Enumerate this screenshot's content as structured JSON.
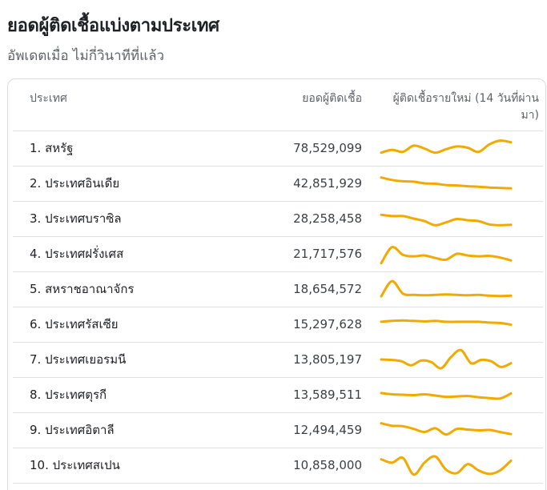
{
  "title": "ยอดผู้ติดเชื้อแบ่งตามประเทศ",
  "subtitle": "อัพเดตเมื่อ ไม่กี่วินาทีที่แล้ว",
  "table": {
    "headers": {
      "country": "ประเทศ",
      "cases": "ยอดผู้ติดเชื้อ",
      "trend": "ผู้ติดเชื้อรายใหม่ (14 วันที่ผ่านมา)"
    },
    "rows": [
      {
        "country": "1. สหรัฐ",
        "cases": "78,529,099",
        "trend": [
          0.28,
          0.42,
          0.32,
          0.62,
          0.48,
          0.28,
          0.45,
          0.58,
          0.52,
          0.32,
          0.68,
          0.86,
          0.78
        ]
      },
      {
        "country": "2. ประเทศอินเดีย",
        "cases": "42,851,929",
        "trend": [
          0.78,
          0.66,
          0.6,
          0.58,
          0.5,
          0.48,
          0.42,
          0.4,
          0.36,
          0.34,
          0.3,
          0.28,
          0.26
        ]
      },
      {
        "country": "3. ประเทศบราซิล",
        "cases": "28,258,458",
        "trend": [
          0.68,
          0.62,
          0.62,
          0.5,
          0.38,
          0.18,
          0.32,
          0.48,
          0.42,
          0.38,
          0.22,
          0.18,
          0.2
        ]
      },
      {
        "country": "4. ประเทศฝรั่งเศส",
        "cases": "21,717,576",
        "trend": [
          0.05,
          0.82,
          0.45,
          0.38,
          0.42,
          0.3,
          0.22,
          0.5,
          0.42,
          0.38,
          0.4,
          0.32,
          0.18
        ]
      },
      {
        "country": "5. สหราชอาณาจักร",
        "cases": "18,654,572",
        "trend": [
          0.15,
          0.88,
          0.28,
          0.22,
          0.2,
          0.22,
          0.24,
          0.22,
          0.2,
          0.22,
          0.18,
          0.16,
          0.18
        ]
      },
      {
        "country": "6. ประเทศรัสเซีย",
        "cases": "15,297,628",
        "trend": [
          0.62,
          0.66,
          0.68,
          0.66,
          0.64,
          0.66,
          0.62,
          0.62,
          0.62,
          0.62,
          0.58,
          0.56,
          0.48
        ]
      },
      {
        "country": "7. ประเทศเยอรมนี",
        "cases": "13,805,197",
        "trend": [
          0.5,
          0.48,
          0.42,
          0.22,
          0.45,
          0.38,
          0.08,
          0.62,
          0.95,
          0.32,
          0.48,
          0.42,
          0.14,
          0.32
        ]
      },
      {
        "country": "8. ประเทศตุรกี",
        "cases": "13,589,511",
        "trend": [
          0.58,
          0.52,
          0.5,
          0.48,
          0.52,
          0.46,
          0.4,
          0.42,
          0.44,
          0.38,
          0.34,
          0.32,
          0.56
        ]
      },
      {
        "country": "9. ประเทศอิตาลี",
        "cases": "12,494,459",
        "trend": [
          0.82,
          0.7,
          0.68,
          0.55,
          0.4,
          0.58,
          0.28,
          0.55,
          0.52,
          0.48,
          0.5,
          0.4,
          0.3
        ]
      },
      {
        "country": "10. ประเทศสเปน",
        "cases": "10,858,000",
        "trend": [
          0.78,
          0.62,
          0.85,
          0.05,
          0.62,
          0.92,
          0.28,
          0.12,
          0.55,
          0.25,
          0.08,
          0.25,
          0.72
        ]
      }
    ]
  },
  "colors": {
    "trend_line": "#F2A900"
  }
}
